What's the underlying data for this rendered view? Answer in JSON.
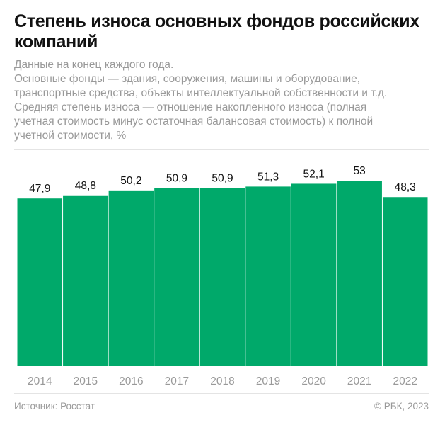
{
  "title": "Степень износа основных фондов российских компаний",
  "subtitle": [
    "Данные на конец каждого года.",
    "Основные фонды — здания, сооружения, машины и оборудование,",
    "транспортные средства, объекты интеллектуальной собственности и т.д.",
    "Средняя степень износа — отношение накопленного износа (полная",
    "учетная стоимость минус остаточная балансовая стоимость) к полной",
    "учетной стоимости, %"
  ],
  "footer": {
    "source": "Источник: Росстат",
    "copyright": "© РБК, 2023"
  },
  "colors": {
    "bar": "#00a96a",
    "text": "#111111",
    "muted": "#999999"
  },
  "chart_data": {
    "type": "bar",
    "categories": [
      "2014",
      "2015",
      "2016",
      "2017",
      "2018",
      "2019",
      "2020",
      "2021",
      "2022"
    ],
    "values": [
      47.9,
      48.8,
      50.2,
      50.9,
      50.9,
      51.3,
      52.1,
      53,
      48.3
    ],
    "labels": [
      "47,9",
      "48,8",
      "50,2",
      "50,9",
      "50,9",
      "51,3",
      "52,1",
      "53",
      "48,3"
    ],
    "ylim": [
      0,
      53
    ],
    "grid": false
  }
}
